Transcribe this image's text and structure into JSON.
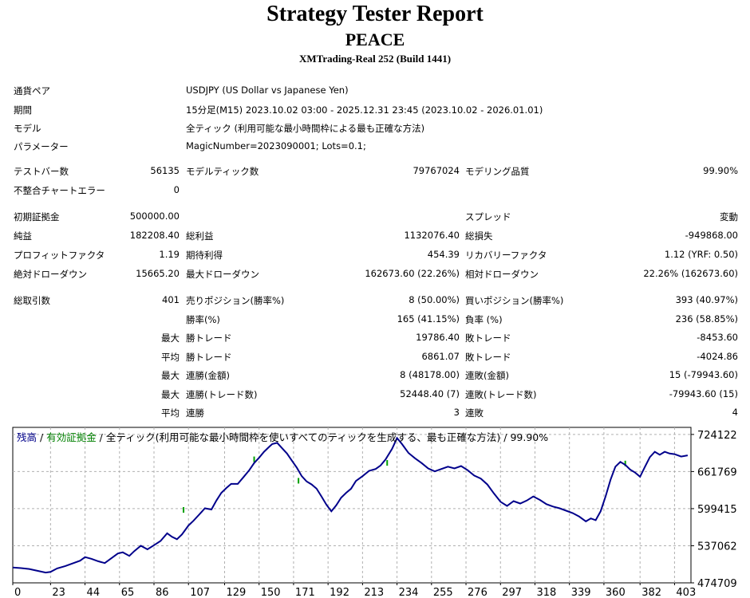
{
  "header": {
    "title": "Strategy Tester Report",
    "subtitle": "PEACE",
    "server": "XMTrading-Real 252 (Build 1441)"
  },
  "params": [
    {
      "label": "通貨ペア",
      "value": "USDJPY (US Dollar vs Japanese Yen)"
    },
    {
      "label": "期間",
      "value": "15分足(M15) 2023.10.02 03:00 - 2025.12.31 23:45 (2023.10.02 - 2026.01.01)"
    },
    {
      "label": "モデル",
      "value": "全ティック (利用可能な最小時間枠による最も正確な方法)"
    },
    {
      "label": "パラメーター",
      "value": "MagicNumber=2023090001; Lots=0.1;"
    }
  ],
  "stats": [
    {
      "l1": "テストバー数",
      "v1": "56135",
      "l2": "モデルティック数",
      "v2": "79767024",
      "l3": "モデリング品質",
      "v3": "99.90%"
    },
    {
      "l1": "不整合チャートエラー",
      "v1": "0",
      "l2": "",
      "v2": "",
      "l3": "",
      "v3": ""
    },
    {
      "l1": "初期証拠金",
      "v1": "500000.00",
      "l2": "",
      "v2": "",
      "l3": "スプレッド",
      "v3": "変動"
    },
    {
      "l1": "純益",
      "v1": "182208.40",
      "l2": "総利益",
      "v2": "1132076.40",
      "l3": "総損失",
      "v3": "-949868.00"
    },
    {
      "l1": "プロフィットファクタ",
      "v1": "1.19",
      "l2": "期待利得",
      "v2": "454.39",
      "l3": "リカバリーファクタ",
      "v3": "1.12 (YRF: 0.50)"
    },
    {
      "l1": "絶対ドローダウン",
      "v1": "15665.20",
      "l2": "最大ドローダウン",
      "v2": "162673.60 (22.26%)",
      "l3": "相対ドローダウン",
      "v3": "22.26% (162673.60)"
    },
    {
      "l1": "総取引数",
      "v1": "401",
      "l2": "売りポジション(勝率%)",
      "v2": "8 (50.00%)",
      "l3": "買いポジション(勝率%)",
      "v3": "393 (40.97%)"
    },
    {
      "l1": "",
      "v1": "",
      "l2": "勝率(%)",
      "v2": "165 (41.15%)",
      "l3": "負率 (%)",
      "v3": "236 (58.85%)"
    },
    {
      "l1": "",
      "v1": "最大",
      "l2": "勝トレード",
      "v2": "19786.40",
      "l3": "敗トレード",
      "v3": "-8453.60"
    },
    {
      "l1": "",
      "v1": "平均",
      "l2": "勝トレード",
      "v2": "6861.07",
      "l3": "敗トレード",
      "v3": "-4024.86"
    },
    {
      "l1": "",
      "v1": "最大",
      "l2": "連勝(金額)",
      "v2": "8 (48178.00)",
      "l3": "連敗(金額)",
      "v3": "15 (-79943.60)"
    },
    {
      "l1": "",
      "v1": "最大",
      "l2": "連勝(トレード数)",
      "v2": "52448.40 (7)",
      "l3": "連敗(トレード数)",
      "v3": "-79943.60 (15)"
    },
    {
      "l1": "",
      "v1": "平均",
      "l2": "連勝",
      "v2": "3",
      "l3": "連敗",
      "v3": "4"
    }
  ],
  "chart_data": {
    "type": "line",
    "legend": {
      "balance": "残高",
      "sep1": " / ",
      "equity": "有効証拠金",
      "sep2": " / ",
      "model": "全ティック(利用可能な最小時間枠を使いすべてのティックを生成する、最も正確な方法)",
      "sep3": " / ",
      "quality": "99.90%"
    },
    "colors": {
      "balance": "#00008b",
      "equity": "#00a000",
      "grid": "#b0b0b0",
      "legend_balance": "#00008b",
      "legend_equity": "#008000"
    },
    "x_ticks": [
      0,
      23,
      44,
      65,
      86,
      107,
      129,
      150,
      171,
      192,
      213,
      234,
      255,
      276,
      297,
      318,
      339,
      360,
      382,
      403
    ],
    "y_ticks": [
      724122,
      661769,
      599415,
      537062,
      474709
    ],
    "xlim": [
      0,
      413
    ],
    "ylim": [
      474709,
      736000
    ],
    "x_label": "",
    "y_label": "",
    "series": [
      {
        "key": "balance",
        "x": [
          0,
          5,
          10,
          15,
          20,
          23,
          27,
          32,
          37,
          41,
          44,
          48,
          52,
          56,
          60,
          64,
          67,
          71,
          74,
          78,
          82,
          86,
          90,
          94,
          97,
          100,
          103,
          107,
          110,
          113,
          117,
          121,
          124,
          127,
          130,
          133,
          137,
          141,
          144,
          147,
          150,
          153,
          156,
          158,
          161,
          164,
          167,
          170,
          173,
          176,
          179,
          182,
          185,
          188,
          191,
          194,
          197,
          200,
          203,
          206,
          209,
          213,
          217,
          221,
          224,
          227,
          231,
          234,
          237,
          241,
          245,
          249,
          253,
          257,
          261,
          265,
          269,
          273,
          277,
          281,
          285,
          289,
          293,
          297,
          301,
          305,
          309,
          313,
          317,
          321,
          325,
          329,
          333,
          337,
          341,
          345,
          349,
          352,
          355,
          358,
          361,
          364,
          367,
          370,
          373,
          376,
          379,
          382,
          385,
          388,
          391,
          394,
          397,
          400,
          403,
          407,
          411
        ],
        "y": [
          500500,
          499500,
          498000,
          495000,
          492000,
          493000,
          499000,
          503000,
          508000,
          512000,
          518000,
          515000,
          511000,
          508000,
          516000,
          524000,
          526000,
          520000,
          528000,
          537000,
          531000,
          538000,
          545000,
          558000,
          552000,
          548000,
          556000,
          571000,
          579000,
          588000,
          600000,
          598000,
          613000,
          626000,
          634000,
          641000,
          641000,
          654000,
          664000,
          676000,
          685000,
          695000,
          703000,
          708000,
          710000,
          701000,
          692000,
          680000,
          668000,
          654000,
          645000,
          640000,
          633000,
          620000,
          606000,
          595000,
          605000,
          618000,
          626000,
          633000,
          646000,
          654000,
          663000,
          666000,
          672000,
          682000,
          700000,
          718000,
          708000,
          693000,
          684000,
          676000,
          667000,
          662000,
          666000,
          670000,
          667000,
          671000,
          664000,
          655000,
          650000,
          640000,
          625000,
          611000,
          604000,
          612000,
          608000,
          613000,
          620000,
          614000,
          607000,
          603000,
          600000,
          596000,
          592000,
          586000,
          578000,
          583000,
          580000,
          595000,
          620000,
          648000,
          670000,
          678000,
          673000,
          665000,
          660000,
          653000,
          670000,
          686000,
          695000,
          690000,
          695000,
          692000,
          691000,
          687000,
          689000
        ],
        "equity_spikes": [
          [
            104,
            602000
          ],
          [
            147,
            687000
          ],
          [
            174,
            651000
          ],
          [
            228,
            681000
          ],
          [
            373,
            680000
          ]
        ]
      }
    ]
  }
}
